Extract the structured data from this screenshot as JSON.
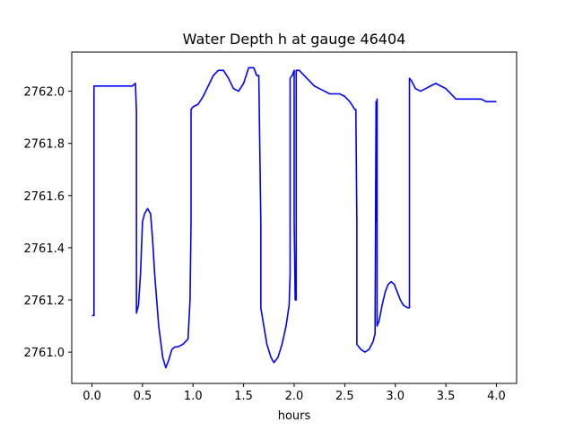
{
  "chart_data": {
    "type": "line",
    "title": "Water Depth h at gauge 46404",
    "xlabel": "hours",
    "ylabel": "",
    "xlim": [
      -0.2,
      4.2
    ],
    "ylim": [
      2760.88,
      2762.15
    ],
    "grid": false,
    "xticks": [
      0.0,
      0.5,
      1.0,
      1.5,
      2.0,
      2.5,
      3.0,
      3.5,
      4.0
    ],
    "xtick_labels": [
      "0.0",
      "0.5",
      "1.0",
      "1.5",
      "2.0",
      "2.5",
      "3.0",
      "3.5",
      "4.0"
    ],
    "yticks": [
      2761.0,
      2761.2,
      2761.4,
      2761.6,
      2761.8,
      2762.0
    ],
    "ytick_labels": [
      "2761.0",
      "2761.2",
      "2761.4",
      "2761.6",
      "2761.8",
      "2762.0"
    ],
    "series": [
      {
        "color": "#0000ff",
        "x": [
          0.0,
          0.01,
          0.02,
          0.02,
          0.1,
          0.2,
          0.3,
          0.36,
          0.4,
          0.43,
          0.44,
          0.44,
          0.46,
          0.48,
          0.5,
          0.52,
          0.55,
          0.58,
          0.6,
          0.62,
          0.66,
          0.7,
          0.73,
          0.76,
          0.79,
          0.82,
          0.85,
          0.9,
          0.95,
          0.97,
          0.98,
          0.98,
          1.0,
          1.05,
          1.1,
          1.15,
          1.2,
          1.25,
          1.3,
          1.35,
          1.4,
          1.45,
          1.5,
          1.55,
          1.6,
          1.63,
          1.65,
          1.67,
          1.67,
          1.7,
          1.73,
          1.77,
          1.8,
          1.84,
          1.88,
          1.92,
          1.95,
          1.96,
          1.96,
          1.98,
          2.0,
          2.0,
          2.01,
          2.02,
          2.02,
          2.05,
          2.1,
          2.15,
          2.2,
          2.25,
          2.3,
          2.35,
          2.4,
          2.45,
          2.5,
          2.55,
          2.6,
          2.61,
          2.62,
          2.62,
          2.66,
          2.7,
          2.74,
          2.78,
          2.8,
          2.81,
          2.81,
          2.82,
          2.82,
          2.84,
          2.87,
          2.9,
          2.93,
          2.96,
          2.99,
          3.02,
          3.05,
          3.08,
          3.12,
          3.14,
          3.14,
          3.16,
          3.2,
          3.25,
          3.3,
          3.35,
          3.4,
          3.45,
          3.5,
          3.55,
          3.6,
          3.65,
          3.7,
          3.75,
          3.8,
          3.85,
          3.9,
          3.95,
          4.0
        ],
        "y": [
          2761.14,
          2761.14,
          2761.14,
          2762.02,
          2762.02,
          2762.02,
          2762.02,
          2762.02,
          2762.02,
          2762.03,
          2761.92,
          2761.15,
          2761.18,
          2761.3,
          2761.5,
          2761.53,
          2761.55,
          2761.53,
          2761.43,
          2761.3,
          2761.1,
          2760.98,
          2760.94,
          2760.97,
          2761.01,
          2761.02,
          2761.02,
          2761.03,
          2761.05,
          2761.2,
          2761.5,
          2761.93,
          2761.94,
          2761.95,
          2761.98,
          2762.02,
          2762.06,
          2762.08,
          2762.08,
          2762.05,
          2762.01,
          2762.0,
          2762.03,
          2762.09,
          2762.09,
          2762.06,
          2762.06,
          2761.5,
          2761.17,
          2761.1,
          2761.03,
          2760.98,
          2760.96,
          2760.98,
          2761.03,
          2761.1,
          2761.18,
          2761.3,
          2762.05,
          2762.06,
          2762.08,
          2761.5,
          2761.2,
          2761.2,
          2762.08,
          2762.08,
          2762.06,
          2762.04,
          2762.02,
          2762.01,
          2762.0,
          2761.99,
          2761.99,
          2761.99,
          2761.98,
          2761.96,
          2761.93,
          2761.93,
          2761.5,
          2761.03,
          2761.01,
          2761.0,
          2761.01,
          2761.04,
          2761.07,
          2761.96,
          2761.5,
          2761.97,
          2761.1,
          2761.12,
          2761.18,
          2761.23,
          2761.26,
          2761.27,
          2761.26,
          2761.23,
          2761.2,
          2761.18,
          2761.17,
          2761.17,
          2762.05,
          2762.04,
          2762.01,
          2762.0,
          2762.01,
          2762.02,
          2762.03,
          2762.02,
          2762.01,
          2761.99,
          2761.97,
          2761.97,
          2761.97,
          2761.97,
          2761.97,
          2761.97,
          2761.96,
          2761.96,
          2761.96
        ]
      }
    ]
  }
}
